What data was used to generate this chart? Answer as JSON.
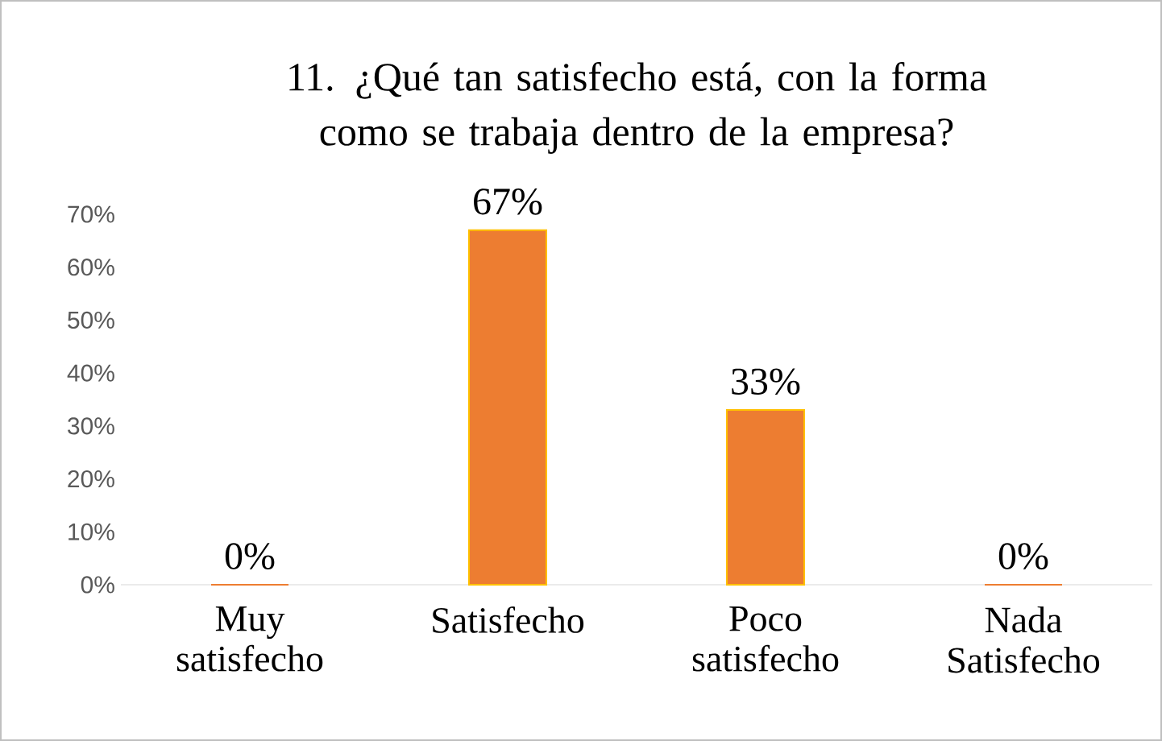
{
  "chart_data": {
    "type": "bar",
    "title": "11. ¿Qué tan satisfecho está, con la forma como se trabaja dentro de la empresa?",
    "categories": [
      "Muy satisfecho",
      "Satisfecho",
      "Poco satisfecho",
      "Nada Satisfecho"
    ],
    "values": [
      0,
      67,
      33,
      0
    ],
    "value_labels": [
      "0%",
      "67%",
      "33%",
      "0%"
    ],
    "color": "#ed7d31",
    "ylim": [
      0,
      70
    ],
    "yticks": [
      {
        "value": 0,
        "label": "0%"
      },
      {
        "value": 10,
        "label": "10%"
      },
      {
        "value": 20,
        "label": "20%"
      },
      {
        "value": 30,
        "label": "30%"
      },
      {
        "value": 40,
        "label": "40%"
      },
      {
        "value": 50,
        "label": "50%"
      },
      {
        "value": 60,
        "label": "60%"
      },
      {
        "value": 70,
        "label": "70%"
      }
    ]
  }
}
